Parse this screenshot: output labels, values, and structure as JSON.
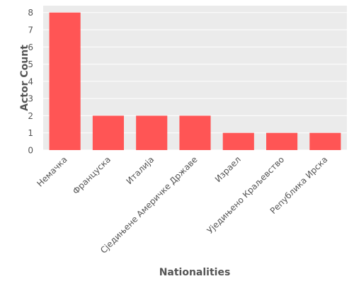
{
  "chart_data": {
    "type": "bar",
    "title": "",
    "xlabel": "Nationalities",
    "ylabel": "Actor Count",
    "categories": [
      "Немачка",
      "Француска",
      "Италија",
      "Сједињене Америчке Државе",
      "Израел",
      "Уједињено Краљевство",
      "Република Ирска"
    ],
    "values": [
      8,
      2,
      2,
      2,
      1,
      1,
      1
    ],
    "ylim": [
      0,
      8.4
    ],
    "yticks": [
      0,
      1,
      2,
      3,
      4,
      5,
      6,
      7,
      8
    ],
    "grid": true,
    "legend": "none",
    "colors": {
      "bar": "#ff5555",
      "plot_background": "#ebebeb",
      "grid": "#ffffff",
      "tick_text": "#555555",
      "axis_label": "#555555"
    }
  }
}
